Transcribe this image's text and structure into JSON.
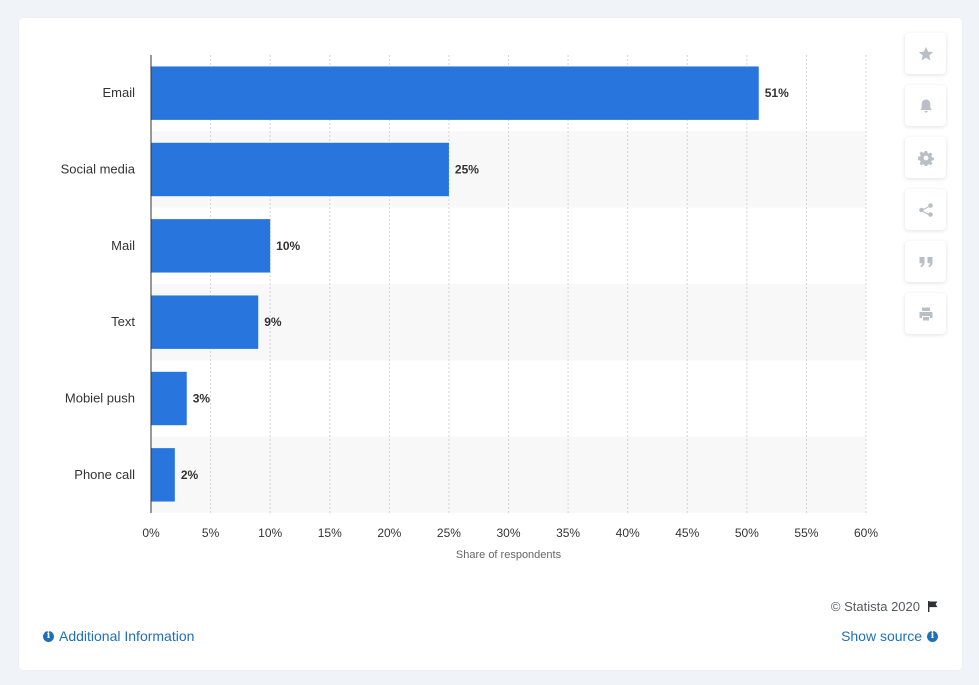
{
  "chart_data": {
    "type": "bar",
    "orientation": "horizontal",
    "categories": [
      "Email",
      "Social media",
      "Mail",
      "Text",
      "Mobiel push",
      "Phone call"
    ],
    "values": [
      51,
      25,
      10,
      9,
      3,
      2
    ],
    "value_labels": [
      "51%",
      "25%",
      "10%",
      "9%",
      "3%",
      "2%"
    ],
    "xlabel": "Share of respondents",
    "xlim": [
      0,
      60
    ],
    "xticks": [
      "0%",
      "5%",
      "10%",
      "15%",
      "20%",
      "25%",
      "30%",
      "35%",
      "40%",
      "45%",
      "50%",
      "55%",
      "60%"
    ],
    "grid": true,
    "bar_color": "#2876dd"
  },
  "toolbar": {
    "icons": [
      "star-icon",
      "bell-icon",
      "gear-icon",
      "share-icon",
      "quote-icon",
      "print-icon"
    ]
  },
  "footer": {
    "credit": "© Statista 2020",
    "additional_info": "Additional Information",
    "show_source": "Show source"
  },
  "colors": {
    "accent": "#2876dd",
    "link": "#1f6fba"
  }
}
